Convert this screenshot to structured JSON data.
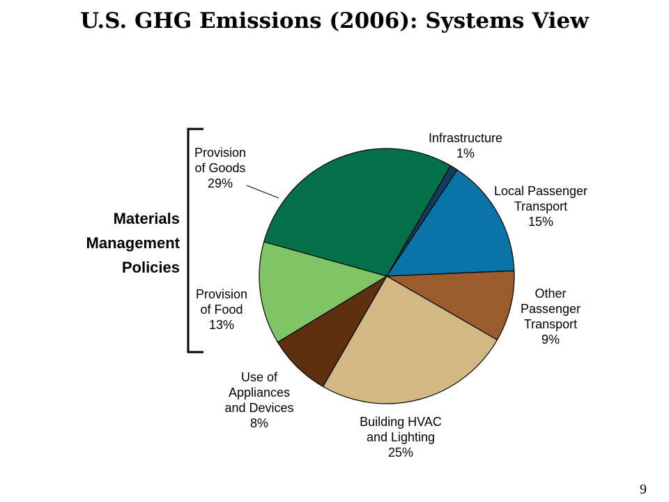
{
  "title": "U.S. GHG Emissions (2006): Systems View",
  "page_number": "9",
  "group_label": [
    "Materials",
    "Management",
    "Policies"
  ],
  "chart_data": {
    "type": "pie",
    "title": "U.S. GHG Emissions (2006): Systems View",
    "start_angle_deg": -60,
    "direction": "clockwise",
    "slices": [
      {
        "label": [
          "Infrastructure"
        ],
        "value": 1,
        "value_label": "1%",
        "color": "#123c5e"
      },
      {
        "label": [
          "Local Passenger",
          "Transport"
        ],
        "value": 15,
        "value_label": "15%",
        "color": "#0a74a8"
      },
      {
        "label": [
          "Other",
          "Passenger",
          "Transport"
        ],
        "value": 9,
        "value_label": "9%",
        "color": "#9a5c2c"
      },
      {
        "label": [
          "Building HVAC",
          "and Lighting"
        ],
        "value": 25,
        "value_label": "25%",
        "color": "#d2b883"
      },
      {
        "label": [
          "Use of",
          "Appliances",
          "and Devices"
        ],
        "value": 8,
        "value_label": "8%",
        "color": "#5e300f"
      },
      {
        "label": [
          "Provision",
          "of Food"
        ],
        "value": 13,
        "value_label": "13%",
        "color": "#80c565"
      },
      {
        "label": [
          "Provision",
          "of Goods"
        ],
        "value": 29,
        "value_label": "29%",
        "color": "#03704a"
      }
    ]
  }
}
